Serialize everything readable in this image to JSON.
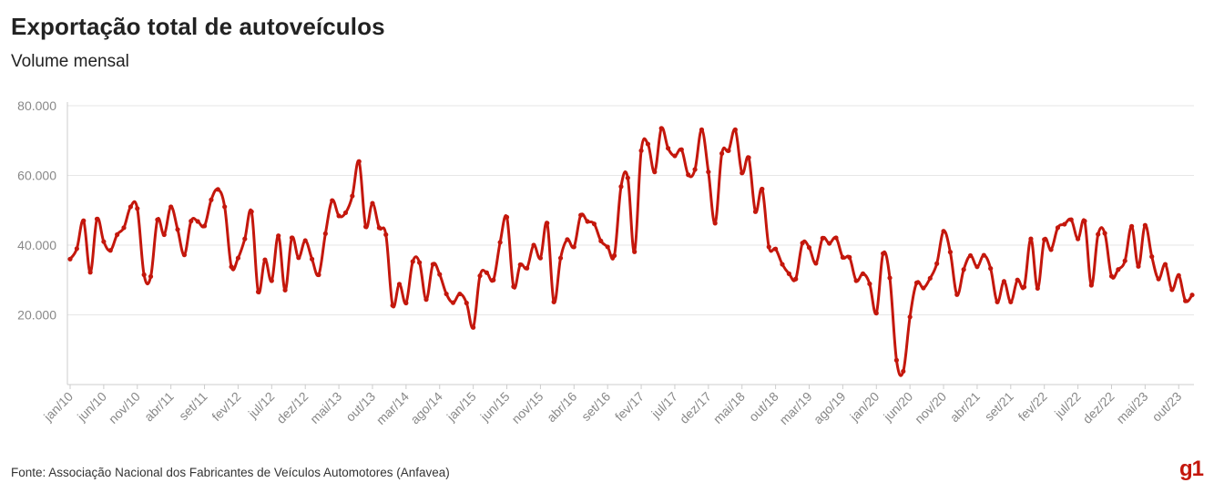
{
  "title": "Exportação total de autoveículos",
  "subtitle": "Volume mensal",
  "source": "Fonte: Associação Nacional dos Fabricantes de Veículos Automotores (Anfavea)",
  "logo": "g1",
  "colors": {
    "line": "#c4170c",
    "grid": "#e6e6e6",
    "axis": "#cccccc",
    "tick_label": "#888888"
  },
  "chart_data": {
    "type": "line",
    "title": "Exportação total de autoveículos",
    "subtitle": "Volume mensal",
    "ylim": [
      0,
      80000
    ],
    "y_ticks": [
      20000,
      40000,
      60000,
      80000
    ],
    "y_tick_labels": [
      "20.000",
      "40.000",
      "60.000",
      "80.000"
    ],
    "grid": true,
    "x_tick_labels": [
      "jan/10",
      "jun/10",
      "nov/10",
      "abr/11",
      "set/11",
      "fev/12",
      "jul/12",
      "dez/12",
      "mai/13",
      "out/13",
      "mar/14",
      "ago/14",
      "jan/15",
      "jun/15",
      "nov/15",
      "abr/16",
      "set/16",
      "fev/17",
      "jul/17",
      "dez/17",
      "mai/18",
      "out/18",
      "mar/19",
      "ago/19",
      "jan/20",
      "jun/20",
      "nov/20",
      "abr/21",
      "set/21",
      "fev/22",
      "jul/22",
      "dez/22",
      "mai/23",
      "out/23"
    ],
    "x_start": "jan/10",
    "x_end": "dez/23",
    "series": [
      {
        "values": [
          36000,
          39000,
          47000,
          32200,
          47500,
          41000,
          38500,
          43000,
          45000,
          51000,
          50500,
          31500,
          31000,
          47300,
          43000,
          51000,
          44500,
          37200,
          46900,
          46800,
          45500,
          53000,
          56000,
          51000,
          33800,
          36300,
          41800,
          49600,
          26600,
          35800,
          29800,
          42700,
          27100,
          42100,
          36400,
          41300,
          36000,
          31500,
          43300,
          52800,
          48400,
          49300,
          54100,
          64000,
          45300,
          52000,
          45000,
          43000,
          22700,
          28800,
          23400,
          35300,
          35000,
          24400,
          34500,
          31600,
          26000,
          23500,
          26000,
          23400,
          16400,
          31200,
          32100,
          30000,
          40800,
          48000,
          28100,
          34400,
          33400,
          40000,
          36300,
          46300,
          23700,
          36300,
          41600,
          39500,
          48600,
          46800,
          46100,
          41200,
          39500,
          37000,
          56800,
          59300,
          38100,
          67100,
          69000,
          61000,
          73500,
          67800,
          65600,
          67400,
          60200,
          61700,
          73100,
          61000,
          46300,
          66300,
          67100,
          73100,
          60700,
          65100,
          49600,
          56100,
          39500,
          38900,
          34500,
          31800,
          30300,
          40600,
          39300,
          34800,
          42000,
          40500,
          42100,
          36500,
          36500,
          29800,
          31800,
          28900,
          20500,
          37600,
          30600,
          7000,
          3800,
          19400,
          29200,
          27700,
          30500,
          34700,
          44000,
          38000,
          25800,
          33000,
          37000,
          33800,
          37100,
          33300,
          23700,
          29600,
          23700,
          30000,
          28000,
          41800,
          27600,
          41600,
          38700,
          45000,
          46000,
          47300,
          41800,
          46900,
          28500,
          43100,
          43400,
          31100,
          33000,
          35500,
          45400,
          33900,
          45700,
          36700,
          30300,
          34500,
          27200,
          31300,
          24000,
          25700
        ]
      }
    ]
  }
}
